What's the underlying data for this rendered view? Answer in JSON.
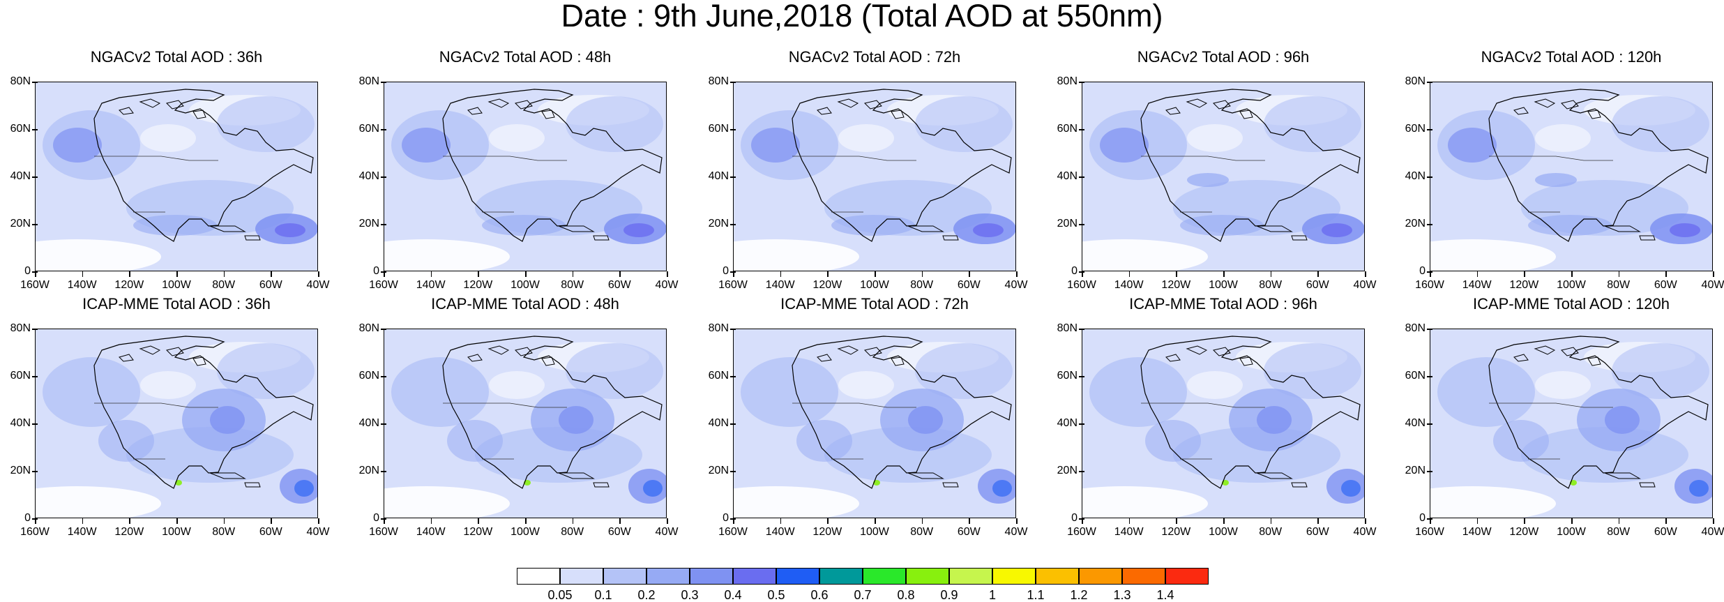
{
  "title": "Date : 9th June,2018 (Total AOD at 550nm)",
  "panels": [
    {
      "title": "NGACv2 Total AOD : 36h"
    },
    {
      "title": "NGACv2 Total AOD : 48h"
    },
    {
      "title": "NGACv2 Total AOD : 72h"
    },
    {
      "title": "NGACv2 Total AOD : 96h"
    },
    {
      "title": "NGACv2 Total AOD : 120h"
    },
    {
      "title": "ICAP-MME Total AOD : 36h"
    },
    {
      "title": "ICAP-MME Total AOD : 48h"
    },
    {
      "title": "ICAP-MME Total AOD : 72h"
    },
    {
      "title": "ICAP-MME Total AOD : 96h"
    },
    {
      "title": "ICAP-MME Total AOD : 120h"
    }
  ],
  "axes": {
    "lat_ticks": [
      "80N",
      "60N",
      "40N",
      "20N",
      "0"
    ],
    "lon_ticks": [
      "160W",
      "140W",
      "120W",
      "100W",
      "80W",
      "60W",
      "40W"
    ]
  },
  "colorbar": {
    "labels": [
      "0.05",
      "0.1",
      "0.2",
      "0.3",
      "0.4",
      "0.5",
      "0.6",
      "0.7",
      "0.8",
      "0.9",
      "1",
      "1.1",
      "1.2",
      "1.3",
      "1.4"
    ],
    "colors": [
      "#ffffff",
      "#d7dffb",
      "#b4c3f7",
      "#96aaf4",
      "#7f92f2",
      "#6a6df0",
      "#1f5df4",
      "#00999a",
      "#2ae82a",
      "#88f00e",
      "#c6f54d",
      "#f8f800",
      "#fbc000",
      "#fb9800",
      "#fb6a00",
      "#fb2a10"
    ]
  }
}
